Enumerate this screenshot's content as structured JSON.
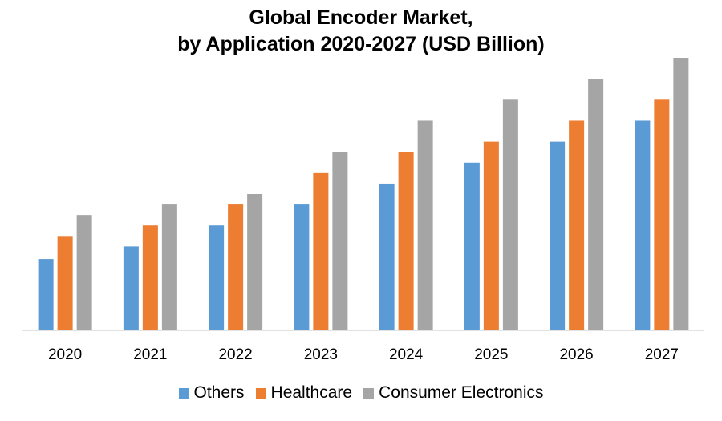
{
  "chart_data": {
    "type": "bar",
    "title": [
      "Global Encoder Market,",
      "by Application 2020-2027 (USD Billion)"
    ],
    "categories": [
      "2020",
      "2021",
      "2022",
      "2023",
      "2024",
      "2025",
      "2026",
      "2027"
    ],
    "series": [
      {
        "name": "Others",
        "color": "#5B9BD5",
        "values": [
          3.4,
          4.0,
          5.0,
          6.0,
          7.0,
          8.0,
          9.0,
          10.0
        ]
      },
      {
        "name": "Healthcare",
        "color": "#ED7D31",
        "values": [
          4.5,
          5.0,
          6.0,
          7.5,
          8.5,
          9.0,
          10.0,
          11.0
        ]
      },
      {
        "name": "Consumer Electronics",
        "color": "#A5A5A5",
        "values": [
          5.5,
          6.0,
          6.5,
          8.5,
          10.0,
          11.0,
          12.0,
          13.0
        ]
      }
    ],
    "ylim": [
      0,
      13
    ],
    "grid": false,
    "legend_position": "bottom"
  }
}
